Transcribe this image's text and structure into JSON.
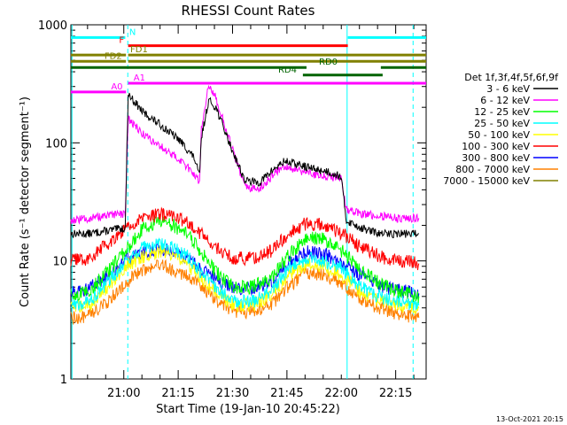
{
  "chart_data": {
    "type": "line",
    "title": "RHESSI Count Rates",
    "xlabel": "Start Time (19-Jan-10 20:45:22)",
    "ylabel": "Count Rate (s⁻¹ detector segment⁻¹)",
    "yscale": "log",
    "ylim": [
      1,
      1000
    ],
    "xlim_minutes": [
      0,
      98
    ],
    "y_ticks": [
      "1",
      "10",
      "100",
      "1000"
    ],
    "x_ticks": [
      {
        "label": "21:00",
        "minute": 14.6
      },
      {
        "label": "21:15",
        "minute": 29.6
      },
      {
        "label": "21:30",
        "minute": 44.6
      },
      {
        "label": "21:45",
        "minute": 59.6
      },
      {
        "label": "22:00",
        "minute": 74.6
      },
      {
        "label": "22:15",
        "minute": 89.6
      }
    ],
    "footer_date": "13-Oct-2021 20:15",
    "legend_title": "Det 1f,3f,4f,5f,6f,9f",
    "series": [
      {
        "name": "3 - 6 keV",
        "color": "#000000",
        "points": [
          [
            0,
            17
          ],
          [
            5,
            17
          ],
          [
            10,
            18
          ],
          [
            15,
            19
          ],
          [
            15.8,
            260
          ],
          [
            20,
            180
          ],
          [
            25,
            140
          ],
          [
            30,
            105
          ],
          [
            34,
            75
          ],
          [
            35.5,
            52
          ],
          [
            36,
            110
          ],
          [
            38,
            230
          ],
          [
            40,
            200
          ],
          [
            44,
            95
          ],
          [
            48,
            48
          ],
          [
            52,
            46
          ],
          [
            56,
            60
          ],
          [
            59,
            70
          ],
          [
            63,
            65
          ],
          [
            67,
            60
          ],
          [
            71,
            57
          ],
          [
            74.5,
            52
          ],
          [
            76,
            22
          ],
          [
            80,
            19
          ],
          [
            85,
            17
          ],
          [
            90,
            17
          ],
          [
            96,
            17
          ]
        ]
      },
      {
        "name": "6 - 12 keV",
        "color": "#ff00ff",
        "points": [
          [
            0,
            22
          ],
          [
            5,
            23
          ],
          [
            10,
            24
          ],
          [
            15,
            25
          ],
          [
            15.8,
            160
          ],
          [
            20,
            118
          ],
          [
            25,
            92
          ],
          [
            30,
            72
          ],
          [
            34,
            55
          ],
          [
            35.5,
            46
          ],
          [
            36,
            130
          ],
          [
            38,
            320
          ],
          [
            40,
            240
          ],
          [
            44,
            100
          ],
          [
            48,
            42
          ],
          [
            52,
            40
          ],
          [
            56,
            55
          ],
          [
            59,
            64
          ],
          [
            63,
            58
          ],
          [
            67,
            54
          ],
          [
            71,
            52
          ],
          [
            74.5,
            50
          ],
          [
            76,
            27
          ],
          [
            80,
            25
          ],
          [
            85,
            24
          ],
          [
            90,
            23
          ],
          [
            96,
            23
          ]
        ]
      },
      {
        "name": "12 - 25 keV",
        "color": "#00ff00",
        "points": [
          [
            0,
            5
          ],
          [
            5,
            5.5
          ],
          [
            10,
            8
          ],
          [
            15,
            12
          ],
          [
            20,
            19
          ],
          [
            25,
            22
          ],
          [
            28,
            20
          ],
          [
            32,
            17
          ],
          [
            36,
            12
          ],
          [
            40,
            8
          ],
          [
            45,
            6
          ],
          [
            50,
            6
          ],
          [
            55,
            7
          ],
          [
            60,
            11
          ],
          [
            65,
            16
          ],
          [
            70,
            15
          ],
          [
            75,
            12
          ],
          [
            80,
            8.5
          ],
          [
            85,
            6.5
          ],
          [
            90,
            5.5
          ],
          [
            96,
            5
          ]
        ]
      },
      {
        "name": "25 - 50 keV",
        "color": "#00ffff",
        "points": [
          [
            0,
            4.2
          ],
          [
            5,
            4.5
          ],
          [
            10,
            6.5
          ],
          [
            15,
            10
          ],
          [
            20,
            13
          ],
          [
            25,
            14
          ],
          [
            28,
            13
          ],
          [
            32,
            11
          ],
          [
            36,
            8
          ],
          [
            40,
            6
          ],
          [
            45,
            4.5
          ],
          [
            50,
            4.5
          ],
          [
            55,
            5.5
          ],
          [
            60,
            8.5
          ],
          [
            65,
            10.5
          ],
          [
            70,
            10
          ],
          [
            75,
            8.5
          ],
          [
            80,
            6
          ],
          [
            85,
            5
          ],
          [
            90,
            4.5
          ],
          [
            96,
            4.2
          ]
        ]
      },
      {
        "name": "50 - 100 keV",
        "color": "#ffff00",
        "points": [
          [
            0,
            4
          ],
          [
            5,
            4.2
          ],
          [
            10,
            6
          ],
          [
            15,
            9
          ],
          [
            20,
            11
          ],
          [
            25,
            12
          ],
          [
            28,
            11
          ],
          [
            32,
            9.5
          ],
          [
            36,
            7
          ],
          [
            40,
            5.5
          ],
          [
            45,
            4.2
          ],
          [
            50,
            4.2
          ],
          [
            55,
            5
          ],
          [
            60,
            7.5
          ],
          [
            65,
            9.5
          ],
          [
            70,
            9
          ],
          [
            75,
            7.5
          ],
          [
            80,
            5.5
          ],
          [
            85,
            4.6
          ],
          [
            90,
            4.2
          ],
          [
            96,
            4
          ]
        ]
      },
      {
        "name": "100 - 300 keV",
        "color": "#ff0000",
        "points": [
          [
            0,
            10
          ],
          [
            5,
            10.5
          ],
          [
            10,
            14
          ],
          [
            15,
            19
          ],
          [
            20,
            23
          ],
          [
            25,
            25
          ],
          [
            28,
            24
          ],
          [
            32,
            21
          ],
          [
            36,
            17
          ],
          [
            40,
            13
          ],
          [
            45,
            10.5
          ],
          [
            50,
            10.5
          ],
          [
            55,
            12
          ],
          [
            60,
            17
          ],
          [
            65,
            21
          ],
          [
            70,
            20
          ],
          [
            75,
            17
          ],
          [
            80,
            13
          ],
          [
            85,
            11
          ],
          [
            90,
            10
          ],
          [
            96,
            9.5
          ]
        ]
      },
      {
        "name": "300 - 800 keV",
        "color": "#0000ff",
        "points": [
          [
            0,
            5.5
          ],
          [
            5,
            5.8
          ],
          [
            10,
            7.5
          ],
          [
            15,
            10
          ],
          [
            20,
            12
          ],
          [
            25,
            12.5
          ],
          [
            28,
            12
          ],
          [
            32,
            10.5
          ],
          [
            36,
            8.5
          ],
          [
            40,
            7
          ],
          [
            45,
            5.8
          ],
          [
            50,
            5.8
          ],
          [
            55,
            6.5
          ],
          [
            60,
            9.5
          ],
          [
            65,
            12
          ],
          [
            70,
            11.5
          ],
          [
            75,
            9.5
          ],
          [
            80,
            7.5
          ],
          [
            85,
            6.2
          ],
          [
            90,
            5.6
          ],
          [
            96,
            5.3
          ]
        ]
      },
      {
        "name": "800 - 7000 keV",
        "color": "#ff8000",
        "points": [
          [
            0,
            3.3
          ],
          [
            5,
            3.4
          ],
          [
            10,
            4.5
          ],
          [
            15,
            6.5
          ],
          [
            20,
            8.5
          ],
          [
            25,
            9
          ],
          [
            28,
            8.5
          ],
          [
            32,
            7.5
          ],
          [
            36,
            6
          ],
          [
            40,
            4.7
          ],
          [
            45,
            3.8
          ],
          [
            50,
            3.7
          ],
          [
            55,
            4.2
          ],
          [
            60,
            6
          ],
          [
            65,
            8
          ],
          [
            70,
            7.6
          ],
          [
            75,
            6.3
          ],
          [
            80,
            4.8
          ],
          [
            85,
            4
          ],
          [
            90,
            3.6
          ],
          [
            96,
            3.3
          ]
        ]
      },
      {
        "name": "7000 - 15000 keV",
        "color": "#808000",
        "points": []
      }
    ],
    "attenuator_bars": [
      {
        "label": "N",
        "color": "#00ffff",
        "y": 780,
        "segments": [
          [
            0,
            15
          ],
          [
            76.4,
            98
          ]
        ],
        "label_minute": 15.6,
        "label_side": "right"
      },
      {
        "label": "F",
        "color": "#ff0000",
        "y": 665,
        "segments": [
          [
            15.8,
            76.4
          ]
        ],
        "label_minute": 15.2,
        "label_side": "left"
      },
      {
        "label": "FD1",
        "color": "#808000",
        "y": 555,
        "segments": [
          [
            0,
            15.2
          ],
          [
            15.8,
            98
          ]
        ],
        "label_minute": 15.9,
        "label_side": "right"
      },
      {
        "label": "FD2",
        "color": "#808000",
        "y": 490,
        "segments": [
          [
            0,
            15.2
          ],
          [
            15.8,
            98
          ]
        ],
        "label_minute": 14.6,
        "label_side": "left"
      },
      {
        "label": "RD0",
        "color": "#006400",
        "y": 435,
        "segments": [
          [
            0,
            65
          ],
          [
            85.5,
            98
          ]
        ],
        "label_minute": 71,
        "label_side": "center"
      },
      {
        "label": "RD4",
        "color": "#006400",
        "y": 375,
        "segments": [
          [
            64,
            86
          ]
        ],
        "label_minute": 62.8,
        "label_side": "left"
      },
      {
        "label": "A0",
        "color": "#ff00ff",
        "y": 270,
        "segments": [
          [
            0,
            15.2
          ]
        ],
        "label_minute": 14.8,
        "label_side": "left"
      },
      {
        "label": "A1",
        "color": "#ff00ff",
        "y": 320,
        "segments": [
          [
            15.8,
            98
          ]
        ],
        "label_minute": 16.8,
        "label_side": "right"
      }
    ],
    "vlines": [
      {
        "minute": 0.3,
        "color": "#00ffff",
        "style": "solid"
      },
      {
        "minute": 15.7,
        "color": "#00ffff",
        "style": "dashed"
      },
      {
        "minute": 76.2,
        "color": "#00ffff",
        "style": "solid"
      },
      {
        "minute": 94.4,
        "color": "#00ffff",
        "style": "dashed"
      }
    ]
  }
}
